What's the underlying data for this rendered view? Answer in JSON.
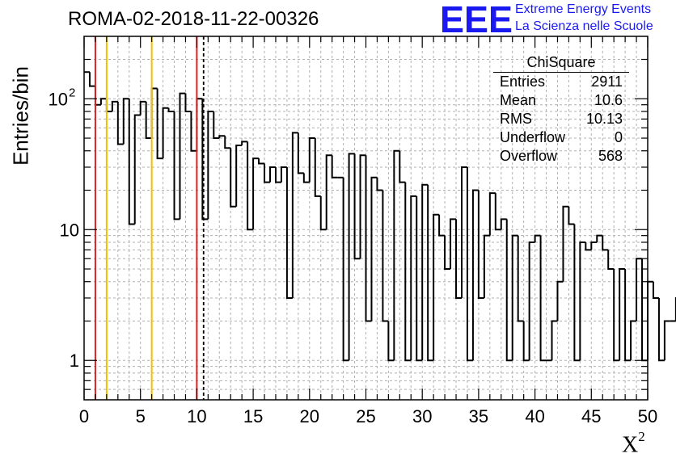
{
  "title": "ROMA-02-2018-11-22-00326",
  "logo": {
    "mark": "EEE",
    "line1": "Extreme Energy Events",
    "line2": "La Scienza nelle Scuole",
    "color": "#1a1af0"
  },
  "stats": {
    "name": "ChiSquare",
    "rows": [
      {
        "label": "Entries",
        "value": "2911"
      },
      {
        "label": "Mean",
        "value": "10.6"
      },
      {
        "label": "RMS",
        "value": "10.13"
      },
      {
        "label": "Underflow",
        "value": "0"
      },
      {
        "label": "Overflow",
        "value": "568"
      }
    ]
  },
  "chart_data": {
    "type": "histogram",
    "title": "ROMA-02-2018-11-22-00326",
    "xlabel": "X",
    "xlabel_sup": "2",
    "ylabel": "Entries/bin",
    "xlim": [
      0,
      50
    ],
    "ylim": [
      0.5,
      300
    ],
    "yscale": "log",
    "grid": true,
    "bin_width": 0.5,
    "x_ticks": [
      "0",
      "5",
      "10",
      "15",
      "20",
      "25",
      "30",
      "35",
      "40",
      "45",
      "50"
    ],
    "y_ticks": [
      {
        "value": 1,
        "label": "1"
      },
      {
        "value": 10,
        "label": "10"
      },
      {
        "value": 100,
        "label": "10",
        "sup": "2"
      }
    ],
    "values": [
      160,
      125,
      90,
      100,
      80,
      95,
      45,
      100,
      11,
      75,
      95,
      50,
      120,
      35,
      85,
      80,
      12,
      110,
      80,
      40,
      100,
      12,
      80,
      50,
      52,
      42,
      15,
      44,
      47,
      10,
      35,
      32,
      23,
      30,
      23,
      30,
      3,
      55,
      27,
      23,
      50,
      18,
      10,
      37,
      25,
      25,
      1,
      38,
      6,
      37,
      2,
      25,
      20,
      2,
      1,
      40,
      23,
      1,
      18,
      1,
      22,
      1,
      13,
      9,
      5,
      12,
      3,
      30,
      1,
      20,
      3,
      9,
      19,
      10,
      12,
      1,
      9,
      2,
      1,
      8,
      9,
      1,
      1,
      2,
      4,
      15,
      11,
      1,
      8,
      7,
      8,
      9,
      7,
      5,
      1,
      5,
      1,
      2,
      6,
      1,
      4,
      3,
      1,
      2,
      2,
      3,
      6,
      4,
      2,
      3,
      1,
      1,
      1,
      2,
      1,
      2,
      3,
      3,
      2,
      1,
      2,
      5,
      4,
      3,
      3,
      1,
      1,
      1,
      5,
      2,
      3,
      4,
      1,
      1,
      1
    ],
    "reference_lines": [
      {
        "x": 1,
        "color": "#e02020",
        "style": "solid"
      },
      {
        "x": 2,
        "color": "#f0c000",
        "style": "solid"
      },
      {
        "x": 6,
        "color": "#f0c000",
        "style": "solid"
      },
      {
        "x": 10,
        "color": "#e02020",
        "style": "solid"
      },
      {
        "x": 10.6,
        "color": "#000000",
        "style": "dashed"
      }
    ]
  }
}
